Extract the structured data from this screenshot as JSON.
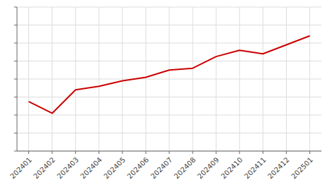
{
  "chart_data": {
    "type": "line",
    "categories": [
      "202401",
      "202402",
      "202403",
      "202404",
      "202405",
      "202406",
      "202407",
      "202408",
      "202409",
      "202410",
      "202411",
      "202412",
      "202501"
    ],
    "values": [
      55,
      42,
      68,
      72,
      78,
      82,
      90,
      92,
      105,
      112,
      108,
      118,
      128
    ],
    "color": "#cc0000",
    "ylim": [
      0,
      160
    ],
    "yticks": [
      0,
      20,
      40,
      60,
      80,
      100,
      120,
      140,
      160
    ],
    "grid": true,
    "tick_labels": "x"
  }
}
